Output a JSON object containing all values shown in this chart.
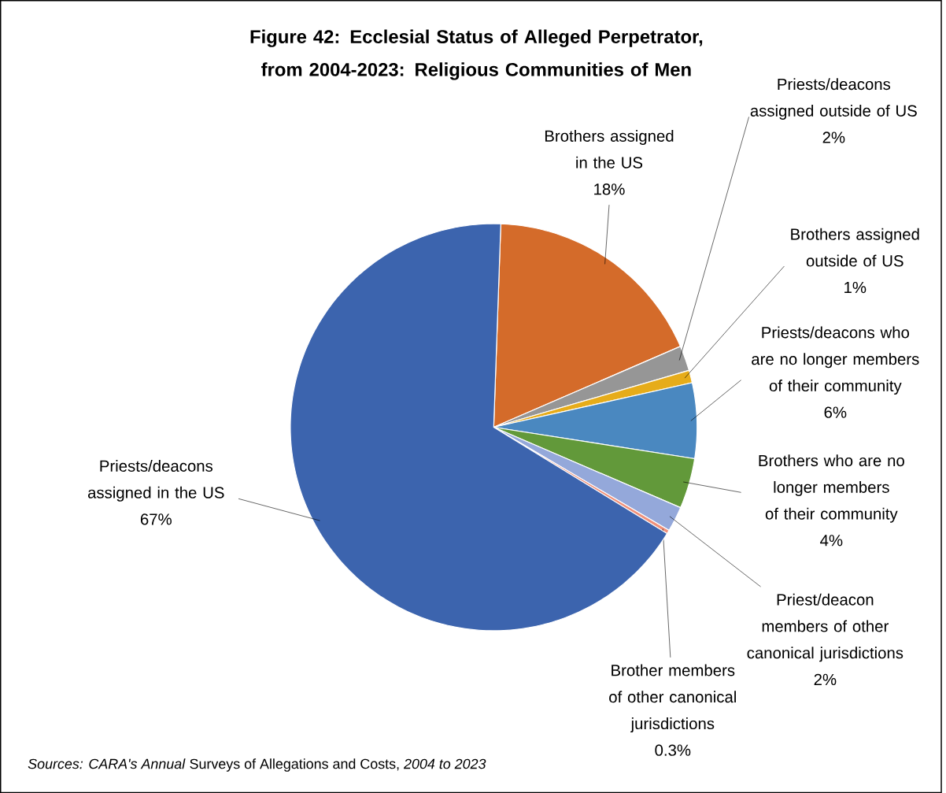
{
  "chart_data": {
    "type": "pie",
    "title": "Figure 42: Ecclesial Status of Alleged Perpetrator, from 2004-2023: Religious Communities of Men",
    "categories": [
      "Brothers assigned in the US",
      "Priests/deacons assigned outside of US",
      "Brothers assigned outside of US",
      "Priests/deacons who are no longer members of their community",
      "Brothers who are no longer members of their community",
      "Priest/deacon members of other canonical jurisdictions",
      "Brother members of other canonical jurisdictions",
      "Priests/deacons assigned in the US"
    ],
    "values": [
      18,
      2,
      1,
      6,
      4,
      2,
      0.3,
      67
    ],
    "value_labels": [
      "18%",
      "2%",
      "1%",
      "6%",
      "4%",
      "2%",
      "0.3%",
      "67%"
    ],
    "colors": [
      "#d46b2a",
      "#969696",
      "#e6ac1a",
      "#4a88c0",
      "#62993a",
      "#94a8da",
      "#f0907a",
      "#3c64ae"
    ],
    "annotations": [
      "*Sources: CARA's Annual* Surveys of Allegations and Costs, *2004 to 2023*"
    ]
  }
}
